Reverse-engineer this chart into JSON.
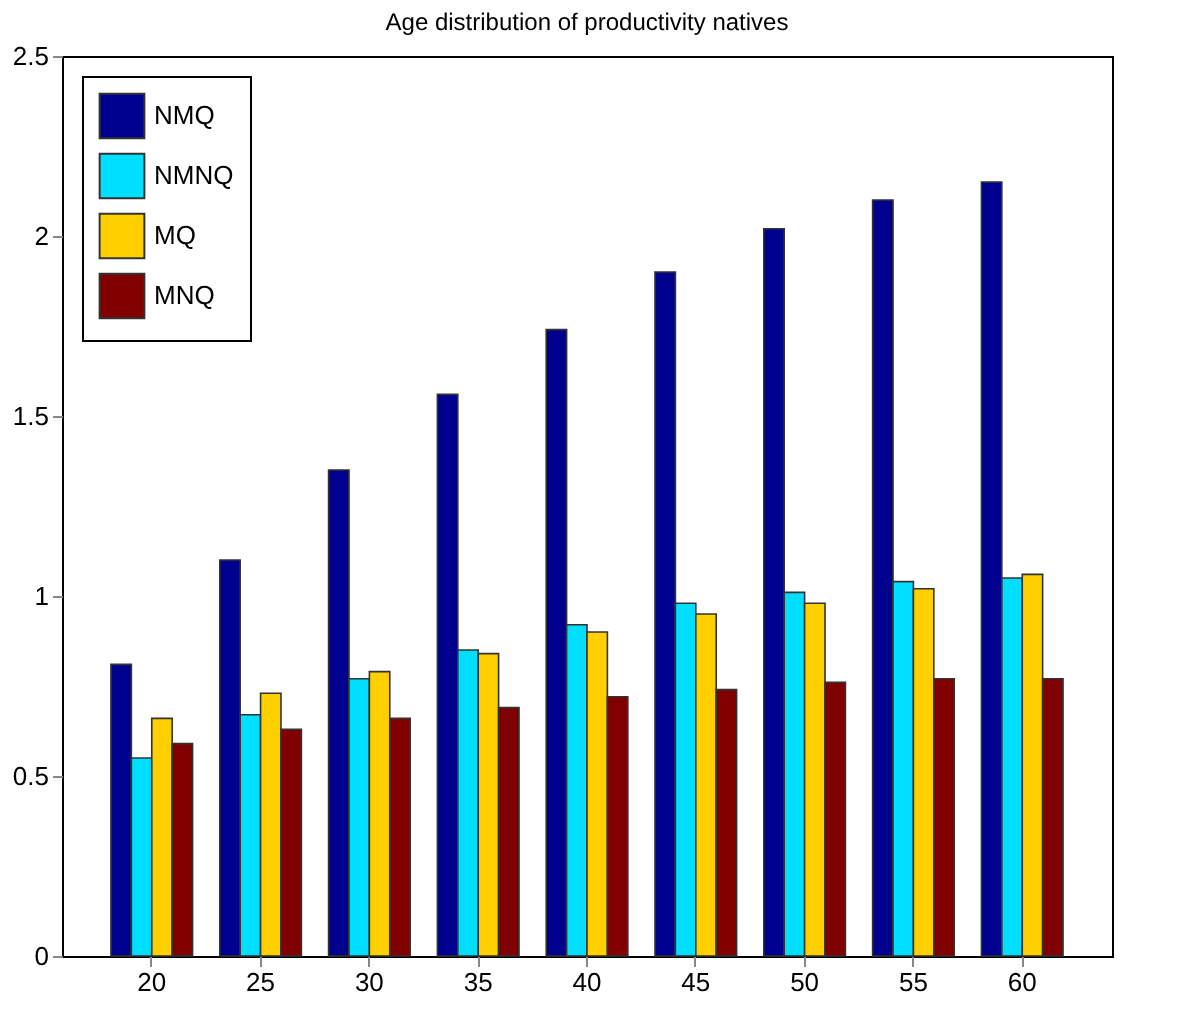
{
  "chart_data": {
    "type": "bar",
    "title": "Age distribution of productivity natives",
    "categories": [
      "20",
      "25",
      "30",
      "35",
      "40",
      "45",
      "50",
      "55",
      "60"
    ],
    "series": [
      {
        "name": "NMQ",
        "color": "#00008f",
        "values": [
          0.81,
          1.1,
          1.35,
          1.56,
          1.74,
          1.9,
          2.02,
          2.1,
          2.15
        ]
      },
      {
        "name": "NMNQ",
        "color": "#00dfff",
        "values": [
          0.55,
          0.67,
          0.77,
          0.85,
          0.92,
          0.98,
          1.01,
          1.04,
          1.05
        ]
      },
      {
        "name": "MQ",
        "color": "#ffcf00",
        "values": [
          0.66,
          0.73,
          0.79,
          0.84,
          0.9,
          0.95,
          0.98,
          1.02,
          1.06
        ]
      },
      {
        "name": "MNQ",
        "color": "#800000",
        "values": [
          0.59,
          0.63,
          0.66,
          0.69,
          0.72,
          0.74,
          0.76,
          0.77,
          0.77
        ]
      }
    ],
    "ylim": [
      0,
      2.5
    ],
    "yticks": [
      0,
      0.5,
      1,
      1.5,
      2,
      2.5
    ],
    "grid": false,
    "legend": "top left"
  }
}
